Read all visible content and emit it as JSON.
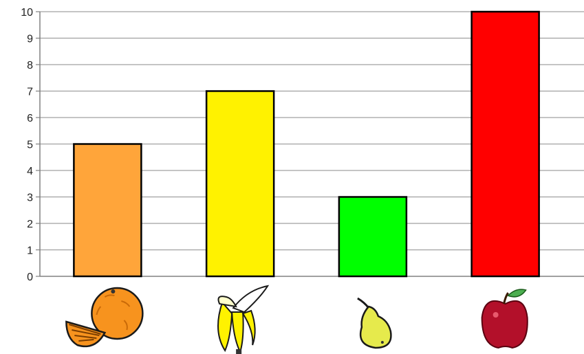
{
  "chart_data": {
    "type": "bar",
    "title": "",
    "xlabel": "",
    "ylabel": "",
    "ylim": [
      0,
      10
    ],
    "yticks": [
      0,
      1,
      2,
      3,
      4,
      5,
      6,
      7,
      8,
      9,
      10
    ],
    "grid": true,
    "legend": "none",
    "categories": [
      {
        "icon": "orange-icon",
        "value": 5,
        "color": "#FFA53A"
      },
      {
        "icon": "banana-icon",
        "value": 7,
        "color": "#FFF200"
      },
      {
        "icon": "pear-icon",
        "value": 3,
        "color": "#00FF00"
      },
      {
        "icon": "apple-icon",
        "value": 10,
        "color": "#FF0000"
      }
    ]
  }
}
